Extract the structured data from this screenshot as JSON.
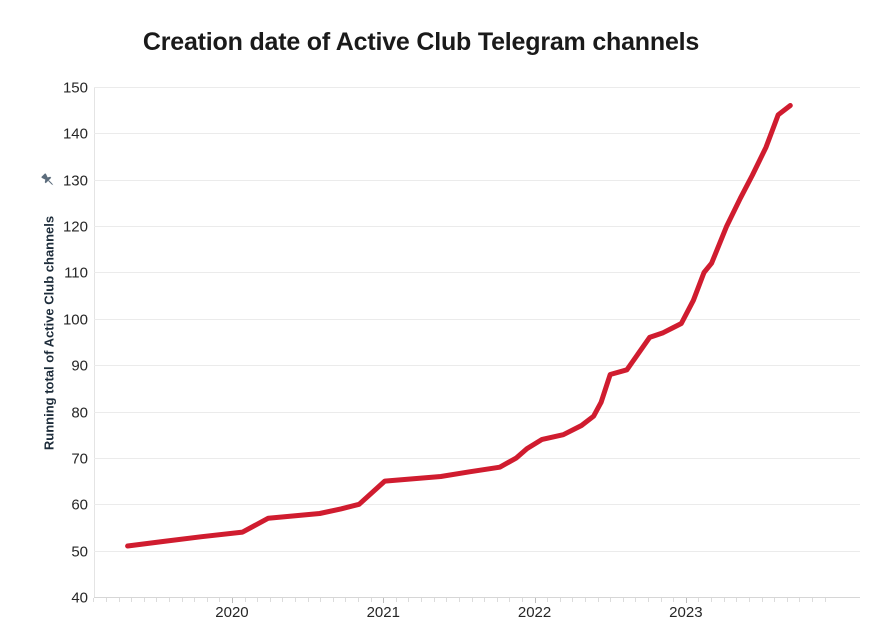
{
  "chart_data": {
    "type": "line",
    "title": "Creation date of Active Club Telegram channels",
    "xlabel": "",
    "ylabel": "Running total of Active Club channels",
    "x_ticks": [
      2020,
      2021,
      2022,
      2023
    ],
    "y_ticks": [
      40,
      50,
      60,
      70,
      80,
      90,
      100,
      110,
      120,
      130,
      140,
      150
    ],
    "xlim": [
      2019.088,
      2024.151
    ],
    "ylim": [
      40,
      150
    ],
    "grid": "horizontal",
    "legend": "none",
    "minor_x_ticks": "monthly",
    "series": [
      {
        "name": "Running total of Active Club channels",
        "color": "#d01c2f",
        "x": [
          2019.31,
          2019.55,
          2019.8,
          2020.07,
          2020.24,
          2020.58,
          2020.72,
          2020.84,
          2021.01,
          2021.38,
          2021.57,
          2021.77,
          2021.88,
          2021.95,
          2022.05,
          2022.19,
          2022.31,
          2022.39,
          2022.44,
          2022.5,
          2022.61,
          2022.76,
          2022.85,
          2022.91,
          2022.97,
          2023.05,
          2023.12,
          2023.17,
          2023.27,
          2023.36,
          2023.44,
          2023.53,
          2023.61,
          2023.69
        ],
        "y": [
          51,
          52,
          53,
          54,
          57,
          58,
          59,
          60,
          65,
          66,
          67,
          68,
          70,
          72,
          74,
          75,
          77,
          79,
          82,
          88,
          89,
          96,
          97,
          98,
          99,
          104,
          110,
          112,
          120,
          126,
          131,
          137,
          144,
          146
        ]
      }
    ]
  },
  "icons": {
    "pushpin": "pushpin"
  },
  "colors": {
    "line": "#d01c2f",
    "title_text": "#1a1a1a",
    "tick_text": "#262626",
    "ylabel_text": "#1d2c3a",
    "gridline": "#ebebeb",
    "axis_line": "#d6d6d6",
    "pushpin": "#5c6c7c"
  }
}
